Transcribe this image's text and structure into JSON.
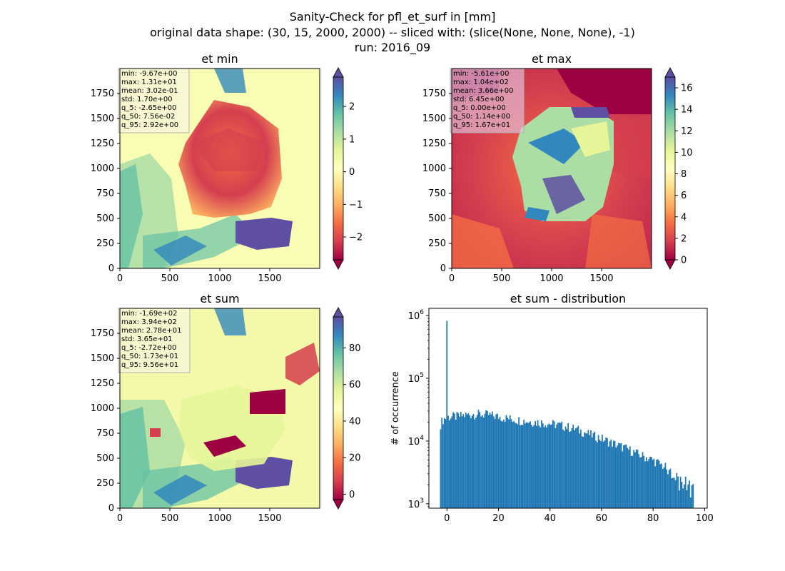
{
  "figure": {
    "title_lines": [
      "Sanity-Check for pfl_et_surf in [mm]",
      "original data shape: (30, 15, 2000, 2000) -- sliced with: (slice(None, None, None), -1)",
      "run: 2016_09"
    ]
  },
  "chart_data": [
    {
      "type": "heatmap",
      "title": "et min",
      "xticks": [
        "0",
        "500",
        "1000",
        "1500"
      ],
      "yticks": [
        "0",
        "250",
        "500",
        "750",
        "1000",
        "1250",
        "1500",
        "1750"
      ],
      "xlim": [
        0,
        2000
      ],
      "ylim": [
        0,
        2000
      ],
      "colormap": "Spectral",
      "colorbar": {
        "ticks": [
          "−2",
          "−1",
          "0",
          "1",
          "2"
        ],
        "tick_values": [
          -2,
          -1,
          0,
          1,
          2
        ],
        "vmin": -2.7,
        "vmax": 2.9
      },
      "stats": [
        "min: -9.67e+00",
        "max: 1.31e+01",
        "mean: 3.02e-01",
        "std: 1.70e+00",
        "q_5: -2.65e+00",
        "q_50: 7.56e-02",
        "q_95: 2.92e+00"
      ]
    },
    {
      "type": "heatmap",
      "title": "et max",
      "xticks": [
        "0",
        "500",
        "1000",
        "1500"
      ],
      "yticks": [
        "0",
        "250",
        "500",
        "750",
        "1000",
        "1250",
        "1500",
        "1750"
      ],
      "xlim": [
        0,
        2000
      ],
      "ylim": [
        0,
        2000
      ],
      "colormap": "Spectral",
      "colorbar": {
        "ticks": [
          "0",
          "2",
          "4",
          "6",
          "8",
          "10",
          "12",
          "14",
          "16"
        ],
        "tick_values": [
          0,
          2,
          4,
          6,
          8,
          10,
          12,
          14,
          16
        ],
        "vmin": 0,
        "vmax": 17
      },
      "stats": [
        "min: -5.61e+00",
        "max: 1.04e+02",
        "mean: 3.66e+00",
        "std: 6.45e+00",
        "q_5: 0.00e+00",
        "q_50: 1.14e+00",
        "q_95: 1.67e+01"
      ]
    },
    {
      "type": "heatmap",
      "title": "et sum",
      "xticks": [
        "0",
        "500",
        "1000",
        "1500"
      ],
      "yticks": [
        "0",
        "250",
        "500",
        "750",
        "1000",
        "1250",
        "1500",
        "1750"
      ],
      "xlim": [
        0,
        2000
      ],
      "ylim": [
        0,
        2000
      ],
      "colormap": "Spectral",
      "colorbar": {
        "ticks": [
          "0",
          "20",
          "40",
          "60",
          "80"
        ],
        "tick_values": [
          0,
          20,
          40,
          60,
          80
        ],
        "vmin": -3,
        "vmax": 97
      },
      "stats": [
        "min: -1.69e+02",
        "max: 3.94e+02",
        "mean: 2.78e+01",
        "std: 3.65e+01",
        "q_5: -2.72e+00",
        "q_50: 1.73e+01",
        "q_95: 9.56e+01"
      ]
    },
    {
      "type": "bar",
      "title": "et sum - distribution",
      "ylabel": "# of occurrence",
      "yscale": "log",
      "xlim": [
        -7,
        101
      ],
      "ylim": [
        850,
        1300000
      ],
      "xticks": [
        "0",
        "20",
        "40",
        "60",
        "80",
        "100"
      ],
      "xtick_values": [
        0,
        20,
        40,
        60,
        80,
        100
      ],
      "yticks": [
        {
          "base": "10",
          "exp": "3",
          "value": 1000
        },
        {
          "base": "10",
          "exp": "4",
          "value": 10000
        },
        {
          "base": "10",
          "exp": "5",
          "value": 100000
        },
        {
          "base": "10",
          "exp": "6",
          "value": 1000000
        }
      ],
      "bin_start": -2.7,
      "bin_width": 0.49,
      "spike": {
        "x": 0,
        "value": 820000
      },
      "envelope": [
        [
          -2.7,
          18000
        ],
        [
          -1.5,
          22000
        ],
        [
          0,
          24000
        ],
        [
          5,
          25000
        ],
        [
          10,
          27000
        ],
        [
          15,
          26500
        ],
        [
          20,
          24500
        ],
        [
          25,
          22500
        ],
        [
          30,
          21000
        ],
        [
          35,
          20000
        ],
        [
          40,
          19000
        ],
        [
          45,
          17500
        ],
        [
          50,
          15500
        ],
        [
          55,
          13000
        ],
        [
          60,
          11000
        ],
        [
          65,
          9000
        ],
        [
          70,
          7500
        ],
        [
          75,
          6000
        ],
        [
          80,
          5000
        ],
        [
          85,
          3800
        ],
        [
          90,
          2700
        ],
        [
          95,
          2000
        ],
        [
          95.6,
          2000
        ]
      ],
      "color": "#1f77b4"
    }
  ]
}
